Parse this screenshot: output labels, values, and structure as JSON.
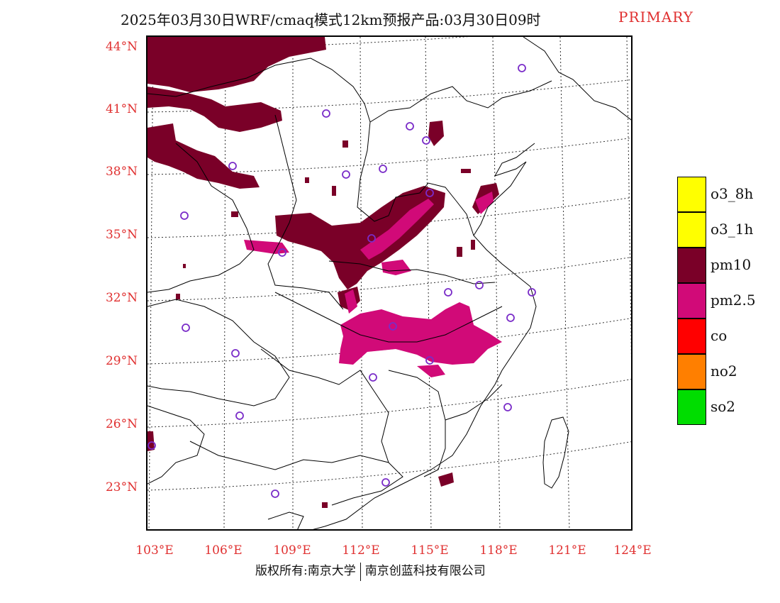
{
  "title": {
    "main": "2025年03月30日WRF/cmaq模式12km预报产品:03月30日09时",
    "tag": "PRIMARY"
  },
  "axes": {
    "lat_labels": [
      "44°N",
      "41°N",
      "38°N",
      "35°N",
      "32°N",
      "29°N",
      "26°N",
      "23°N"
    ],
    "lon_labels": [
      "103°E",
      "106°E",
      "109°E",
      "112°E",
      "115°E",
      "118°E",
      "121°E",
      "124°E"
    ]
  },
  "legend": [
    {
      "label": "o3_8h",
      "color": "#ffff00"
    },
    {
      "label": "o3_1h",
      "color": "#ffff00"
    },
    {
      "label": "pm10",
      "color": "#7a0028"
    },
    {
      "label": "pm2.5",
      "color": "#d10a78"
    },
    {
      "label": "co",
      "color": "#ff0000"
    },
    {
      "label": "no2",
      "color": "#ff7f00"
    },
    {
      "label": "so2",
      "color": "#00dd00"
    }
  ],
  "footer": {
    "left": "版权所有:南京大学",
    "right": "南京创蓝科技有限公司"
  },
  "colors": {
    "pm10": "#7a0028",
    "pm25": "#d10a78",
    "station": "#7a2cc8",
    "label": "#e03030"
  }
}
